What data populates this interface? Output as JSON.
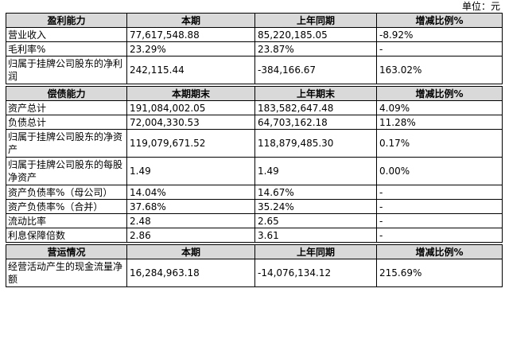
{
  "unit_label": "单位：元",
  "sections": [
    {
      "headers": [
        "盈利能力",
        "本期",
        "上年同期",
        "增减比例%"
      ],
      "rows": [
        {
          "label": "营业收入",
          "v1": "77,617,548.88",
          "v2": "85,220,185.05",
          "v3": "-8.92%"
        },
        {
          "label": "毛利率%",
          "v1": "23.29%",
          "v2": "23.87%",
          "v3": "-"
        },
        {
          "label": "归属于挂牌公司股东的净利润",
          "v1": "242,115.44",
          "v2": "-384,166.67",
          "v3": "163.02%"
        }
      ]
    },
    {
      "headers": [
        "偿债能力",
        "本期期末",
        "上年期末",
        "增减比例%"
      ],
      "rows": [
        {
          "label": "资产总计",
          "v1": "191,084,002.05",
          "v2": "183,582,647.48",
          "v3": "4.09%"
        },
        {
          "label": "负债总计",
          "v1": "72,004,330.53",
          "v2": "64,703,162.18",
          "v3": "11.28%"
        },
        {
          "label": "归属于挂牌公司股东的净资产",
          "v1": "119,079,671.52",
          "v2": "118,879,485.30",
          "v3": "0.17%"
        },
        {
          "label": "归属于挂牌公司股东的每股净资产",
          "v1": "1.49",
          "v2": "1.49",
          "v3": "0.00%"
        },
        {
          "label": "资产负债率%（母公司）",
          "v1": "14.04%",
          "v2": "14.67%",
          "v3": "-"
        },
        {
          "label": "资产负债率%（合并）",
          "v1": "37.68%",
          "v2": "35.24%",
          "v3": "-"
        },
        {
          "label": "流动比率",
          "v1": "2.48",
          "v2": "2.65",
          "v3": "-"
        },
        {
          "label": "利息保障倍数",
          "v1": "2.86",
          "v2": "3.61",
          "v3": "-"
        }
      ]
    },
    {
      "headers": [
        "营运情况",
        "本期",
        "上年同期",
        "增减比例%"
      ],
      "rows": [
        {
          "label": "经营活动产生的现金流量净额",
          "v1": "16,284,963.18",
          "v2": "-14,076,134.12",
          "v3": "215.69%"
        }
      ]
    }
  ]
}
